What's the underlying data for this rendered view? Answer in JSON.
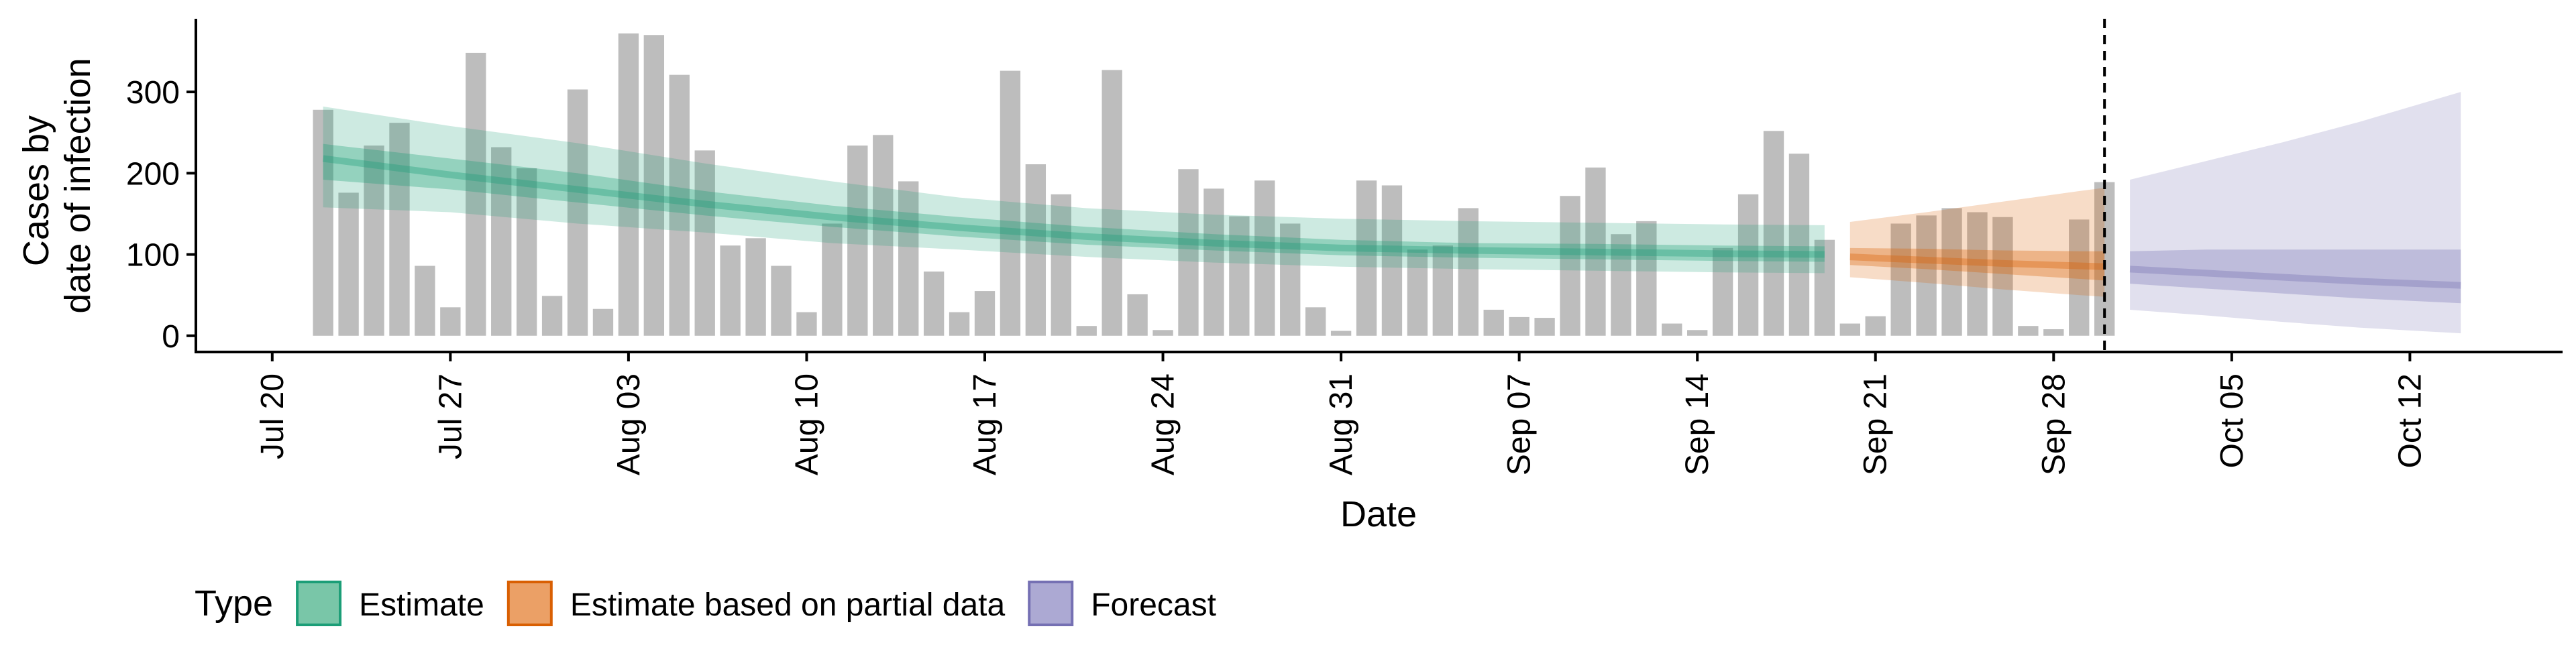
{
  "chart_data": {
    "type": "bar+area",
    "xlabel": "Date",
    "ylabel_lines": [
      "Cases by",
      "date of infection"
    ],
    "ylim": [
      -20,
      390
    ],
    "yticks": [
      0,
      100,
      200,
      300
    ],
    "x_axis_start": "2020-07-17",
    "x_axis_end": "2020-10-18",
    "xticks": [
      {
        "date": "2020-07-20",
        "label": "Jul 20"
      },
      {
        "date": "2020-07-27",
        "label": "Jul 27"
      },
      {
        "date": "2020-08-03",
        "label": "Aug 03"
      },
      {
        "date": "2020-08-10",
        "label": "Aug 10"
      },
      {
        "date": "2020-08-17",
        "label": "Aug 17"
      },
      {
        "date": "2020-08-24",
        "label": "Aug 24"
      },
      {
        "date": "2020-08-31",
        "label": "Aug 31"
      },
      {
        "date": "2020-09-07",
        "label": "Sep 07"
      },
      {
        "date": "2020-09-14",
        "label": "Sep 14"
      },
      {
        "date": "2020-09-21",
        "label": "Sep 21"
      },
      {
        "date": "2020-09-28",
        "label": "Sep 28"
      },
      {
        "date": "2020-10-05",
        "label": "Oct 05"
      },
      {
        "date": "2020-10-12",
        "label": "Oct 12"
      }
    ],
    "vline_date": "2020-09-30",
    "bars": {
      "start_date": "2020-07-22",
      "values": [
        278,
        176,
        234,
        262,
        86,
        35,
        348,
        232,
        206,
        49,
        303,
        33,
        372,
        370,
        321,
        228,
        111,
        120,
        86,
        29,
        138,
        234,
        247,
        190,
        79,
        29,
        55,
        326,
        211,
        174,
        12,
        327,
        51,
        7,
        205,
        181,
        147,
        191,
        138,
        35,
        6,
        191,
        185,
        106,
        111,
        157,
        32,
        23,
        22,
        172,
        207,
        125,
        141,
        15,
        7,
        108,
        174,
        252,
        224,
        118,
        15,
        24,
        138,
        148,
        157,
        152,
        146,
        12,
        8,
        143,
        189
      ]
    },
    "series": [
      {
        "name": "Estimate",
        "color": "#1B9E77",
        "points": [
          {
            "date": "2020-07-22",
            "median": 218,
            "lower90": 158,
            "upper90": 282,
            "lower50": 192,
            "upper50": 236
          },
          {
            "date": "2020-07-27",
            "median": 198,
            "lower90": 152,
            "upper90": 258,
            "lower50": 180,
            "upper50": 218
          },
          {
            "date": "2020-08-01",
            "median": 180,
            "lower90": 138,
            "upper90": 237,
            "lower50": 164,
            "upper50": 200
          },
          {
            "date": "2020-08-06",
            "median": 162,
            "lower90": 127,
            "upper90": 212,
            "lower50": 148,
            "upper50": 178
          },
          {
            "date": "2020-08-11",
            "median": 146,
            "lower90": 114,
            "upper90": 190,
            "lower50": 134,
            "upper50": 160
          },
          {
            "date": "2020-08-16",
            "median": 133,
            "lower90": 106,
            "upper90": 170,
            "lower50": 122,
            "upper50": 146
          },
          {
            "date": "2020-08-21",
            "median": 122,
            "lower90": 97,
            "upper90": 157,
            "lower50": 112,
            "upper50": 134
          },
          {
            "date": "2020-08-26",
            "median": 114,
            "lower90": 90,
            "upper90": 149,
            "lower50": 105,
            "upper50": 125
          },
          {
            "date": "2020-08-31",
            "median": 108,
            "lower90": 85,
            "upper90": 144,
            "lower50": 99,
            "upper50": 118
          },
          {
            "date": "2020-09-05",
            "median": 105,
            "lower90": 82,
            "upper90": 141,
            "lower50": 96,
            "upper50": 114
          },
          {
            "date": "2020-09-10",
            "median": 103,
            "lower90": 80,
            "upper90": 139,
            "lower50": 94,
            "upper50": 113
          },
          {
            "date": "2020-09-15",
            "median": 101,
            "lower90": 78,
            "upper90": 137,
            "lower50": 92,
            "upper50": 111
          },
          {
            "date": "2020-09-19",
            "median": 100,
            "lower90": 77,
            "upper90": 136,
            "lower50": 91,
            "upper50": 110
          }
        ]
      },
      {
        "name": "Estimate based on partial data",
        "color": "#D95F02",
        "points": [
          {
            "date": "2020-09-20",
            "median": 97,
            "lower90": 72,
            "upper90": 140,
            "lower50": 87,
            "upper50": 108
          },
          {
            "date": "2020-09-23",
            "median": 93,
            "lower90": 65,
            "upper90": 152,
            "lower50": 82,
            "upper50": 107
          },
          {
            "date": "2020-09-26",
            "median": 89,
            "lower90": 57,
            "upper90": 165,
            "lower50": 76,
            "upper50": 105
          },
          {
            "date": "2020-09-29",
            "median": 86,
            "lower90": 50,
            "upper90": 178,
            "lower50": 70,
            "upper50": 104
          },
          {
            "date": "2020-09-30",
            "median": 85,
            "lower90": 48,
            "upper90": 182,
            "lower50": 68,
            "upper50": 104
          }
        ]
      },
      {
        "name": "Forecast",
        "color": "#7570B3",
        "points": [
          {
            "date": "2020-10-01",
            "median": 82,
            "lower90": 32,
            "upper90": 192,
            "lower50": 64,
            "upper50": 104
          },
          {
            "date": "2020-10-04",
            "median": 77,
            "lower90": 25,
            "upper90": 215,
            "lower50": 58,
            "upper50": 106
          },
          {
            "date": "2020-10-07",
            "median": 72,
            "lower90": 17,
            "upper90": 238,
            "lower50": 52,
            "upper50": 106
          },
          {
            "date": "2020-10-10",
            "median": 67,
            "lower90": 10,
            "upper90": 263,
            "lower50": 46,
            "upper50": 106
          },
          {
            "date": "2020-10-14",
            "median": 62,
            "lower90": 3,
            "upper90": 300,
            "lower50": 40,
            "upper50": 106
          }
        ]
      }
    ],
    "legend": {
      "title": "Type",
      "position": "bottom-left",
      "items": [
        {
          "label": "Estimate",
          "fill": "#79C6A8",
          "border": "#1B9E77"
        },
        {
          "label": "Estimate based on partial data",
          "fill": "#EBA066",
          "border": "#D95F02"
        },
        {
          "label": "Forecast",
          "fill": "#ACA9D3",
          "border": "#7570B3"
        }
      ]
    },
    "grid": false
  }
}
